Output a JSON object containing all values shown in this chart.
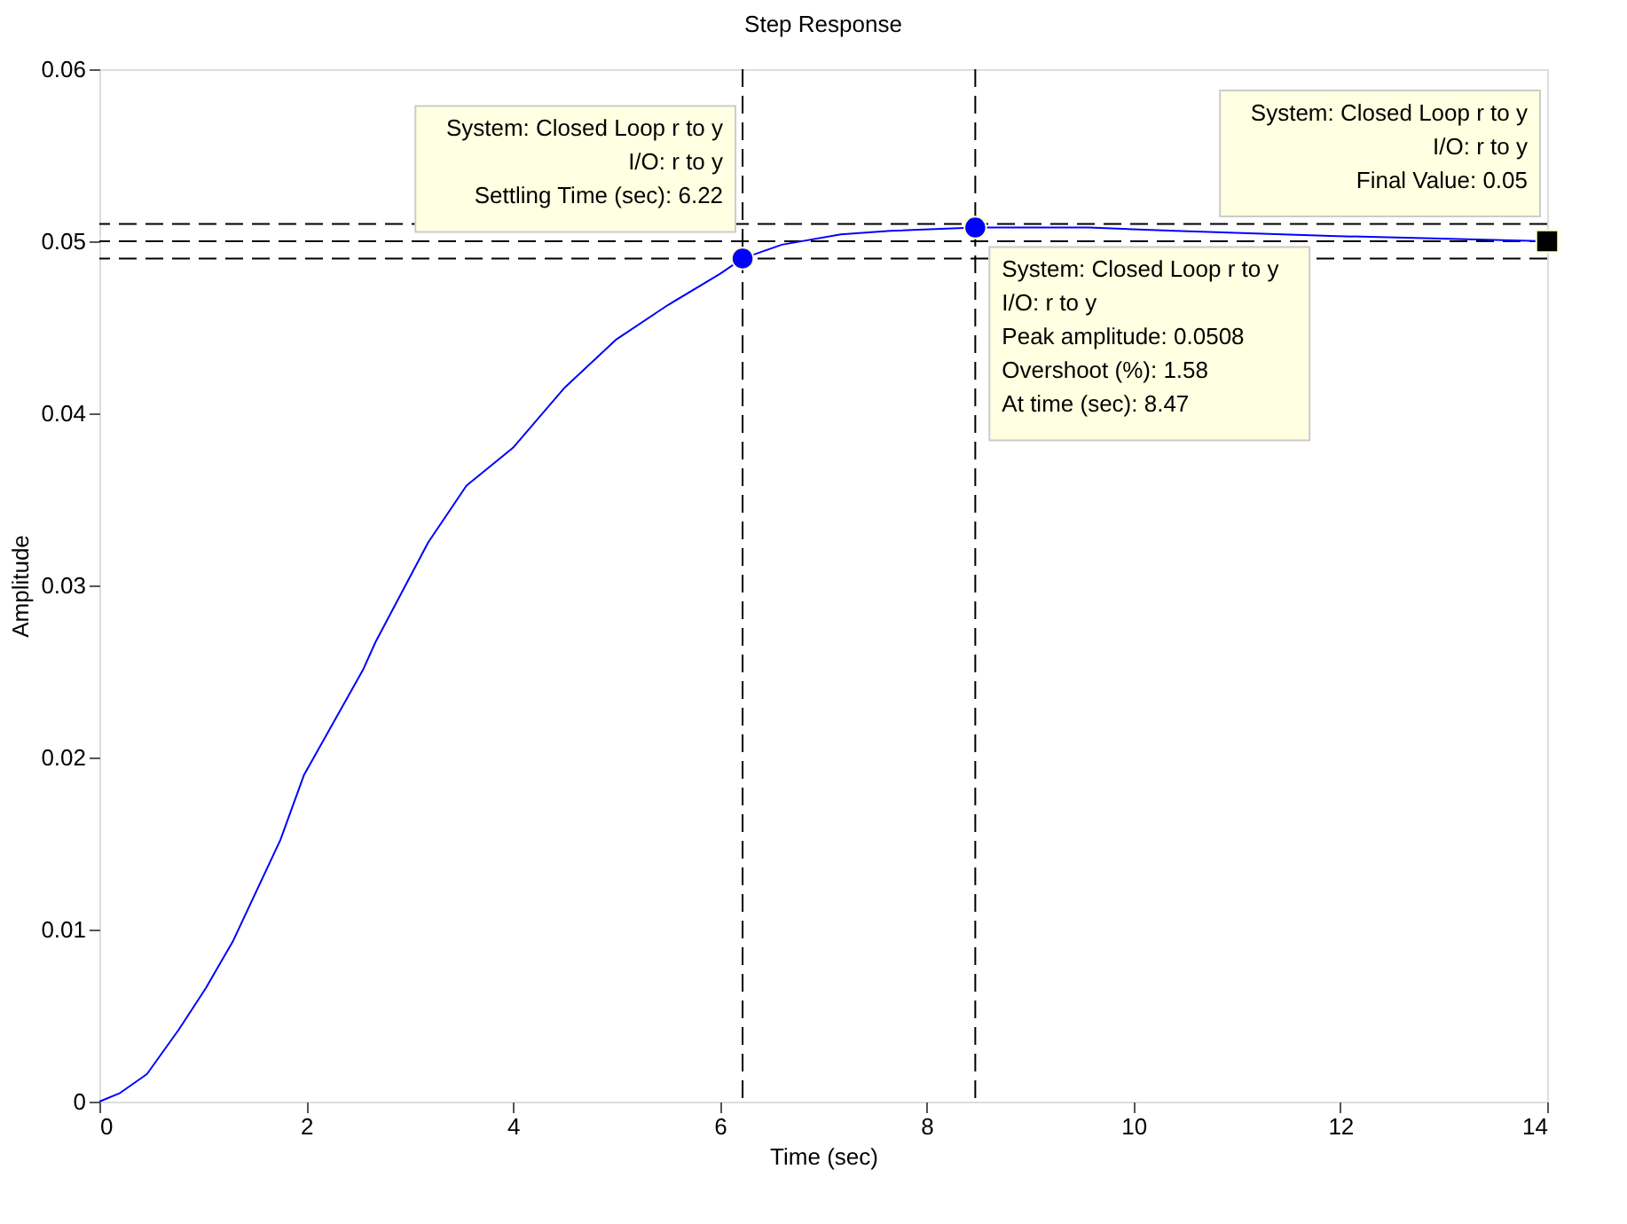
{
  "chart_data": {
    "type": "line",
    "title": "Step Response",
    "xlabel": "Time (sec)",
    "ylabel": "Amplitude",
    "xlim": [
      0,
      14
    ],
    "xticks": [
      0,
      2,
      4,
      6,
      8,
      10,
      12,
      14
    ],
    "ylim": [
      0,
      0.06
    ],
    "yticks": [
      0,
      0.01,
      0.02,
      0.03,
      0.04,
      0.05,
      0.06
    ],
    "grid": false,
    "series": [
      {
        "color": "#0000ff",
        "marker": "none",
        "line_style": "solid",
        "x": [
          0,
          0.2,
          0.46,
          0.77,
          1.03,
          1.29,
          1.75,
          1.98,
          2.55,
          2.67,
          3.18,
          3.55,
          4.0,
          4.5,
          5.0,
          5.5,
          6.0,
          6.22,
          6.6,
          7.17,
          7.65,
          8.47,
          9.57,
          10.4,
          11.97,
          14
        ],
        "values": [
          0,
          0.0005,
          0.0016,
          0.0042,
          0.0066,
          0.0093,
          0.0152,
          0.019,
          0.0251,
          0.0267,
          0.0325,
          0.0358,
          0.038,
          0.0415,
          0.0443,
          0.0463,
          0.0481,
          0.049,
          0.0498,
          0.0504,
          0.0506,
          0.0508,
          0.0508,
          0.0506,
          0.0503,
          0.05
        ]
      },
      {
        "type": "scatter",
        "color": "#0000ff",
        "marker": "circle",
        "x": [
          6.22,
          8.47
        ],
        "values": [
          0.049,
          0.0508
        ]
      },
      {
        "type": "scatter",
        "color": "#000000",
        "marker": "square",
        "x": [
          14
        ],
        "values": [
          0.05
        ]
      }
    ],
    "ref_lines": [
      {
        "axis": "y",
        "value": 0.05,
        "color": "#000000",
        "line_style": "dashed"
      },
      {
        "axis": "y",
        "value": 0.051,
        "color": "#000000",
        "line_style": "dashed"
      },
      {
        "axis": "y",
        "value": 0.049,
        "color": "#000000",
        "line_style": "dashed"
      },
      {
        "axis": "x",
        "value": 6.22,
        "color": "#000000",
        "line_style": "dashed"
      },
      {
        "axis": "x",
        "value": 8.47,
        "color": "#000000",
        "line_style": "dashed"
      }
    ],
    "annotations": [
      {
        "text": "System: Closed Loop r to y\nI/O: r to y\nSettling Time (sec): 6.22",
        "x": 6.22,
        "y": 0.049
      },
      {
        "text": "System: Closed Loop r to y\nI/O: r to y\nFinal Value: 0.05",
        "x": 14,
        "y": 0.05
      },
      {
        "text": "System: Closed Loop r to y\nI/O: r to y\nPeak amplitude: 0.0508\nOvershoot (%): 1.58\nAt time (sec): 8.47",
        "x": 8.47,
        "y": 0.0508
      }
    ]
  }
}
